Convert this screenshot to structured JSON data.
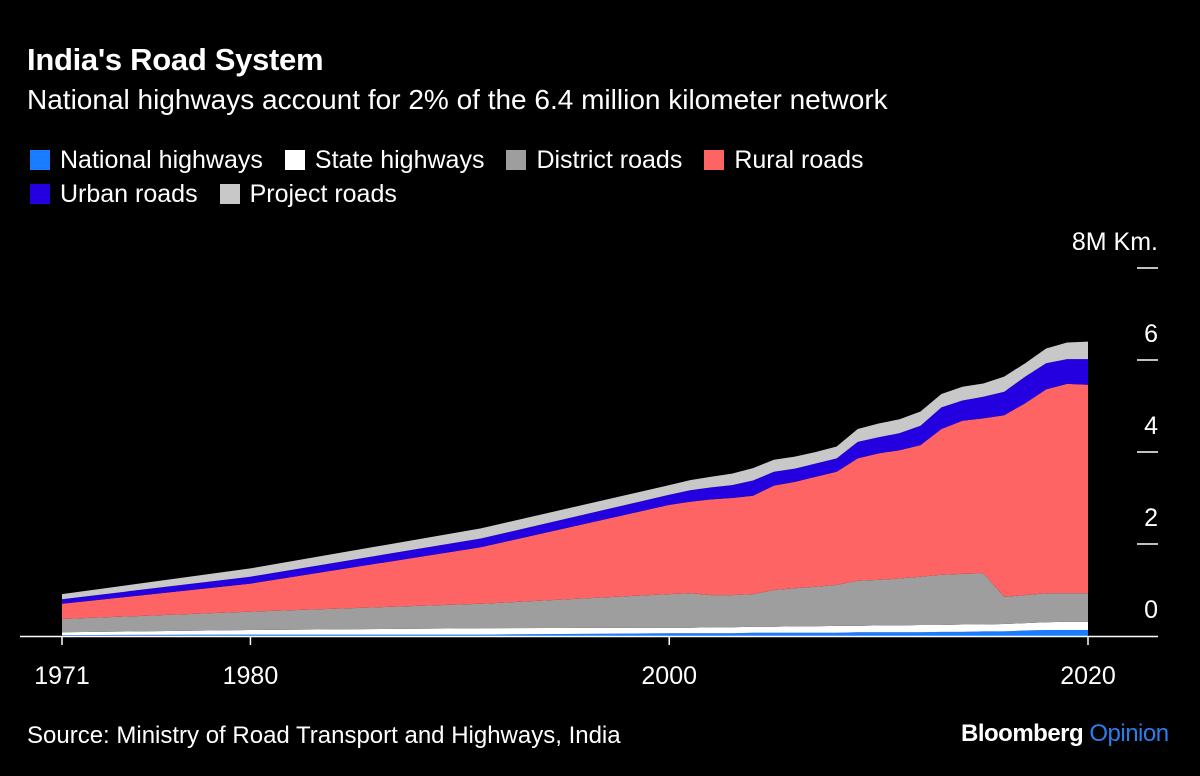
{
  "header": {
    "title": "India's Road System",
    "subtitle": "National highways account for 2% of the 6.4 million kilometer network"
  },
  "footer": {
    "source": "Source: Ministry of Road Transport and Highways, India",
    "logo_brand": "Bloomberg",
    "logo_product": "Opinion"
  },
  "chart_data": {
    "type": "area",
    "stacked": true,
    "title": "India's Road System",
    "subtitle": "National highways account for 2% of the 6.4 million kilometer network",
    "ylabel": "8M Km.",
    "unit": "million km",
    "ylim": [
      0,
      8
    ],
    "xlim": [
      1971,
      2020
    ],
    "yticks": [
      0,
      2,
      4,
      6,
      8
    ],
    "ytick_labels": [
      "0",
      "2",
      "4",
      "6",
      "8M Km."
    ],
    "xticks": [
      1971,
      1980,
      2000,
      2020
    ],
    "xtick_labels": [
      "1971",
      "1980",
      "2000",
      "2020"
    ],
    "legend_placement": "top-left",
    "grid": false,
    "x": [
      1971,
      1980,
      1991,
      2000,
      2001,
      2002,
      2003,
      2004,
      2005,
      2006,
      2007,
      2008,
      2009,
      2010,
      2011,
      2012,
      2013,
      2014,
      2015,
      2016,
      2017,
      2018,
      2019,
      2020
    ],
    "series": [
      {
        "name": "National highways",
        "color": "#1a7cff",
        "values": [
          0.02,
          0.03,
          0.03,
          0.06,
          0.06,
          0.06,
          0.06,
          0.07,
          0.07,
          0.07,
          0.07,
          0.07,
          0.08,
          0.08,
          0.08,
          0.08,
          0.09,
          0.09,
          0.1,
          0.1,
          0.12,
          0.13,
          0.13,
          0.13
        ]
      },
      {
        "name": "State highways",
        "color": "#ffffff",
        "values": [
          0.06,
          0.1,
          0.14,
          0.12,
          0.12,
          0.13,
          0.13,
          0.13,
          0.13,
          0.14,
          0.14,
          0.15,
          0.14,
          0.15,
          0.15,
          0.16,
          0.15,
          0.16,
          0.15,
          0.16,
          0.16,
          0.17,
          0.18,
          0.18
        ]
      },
      {
        "name": "District roads",
        "color": "#9e9e9e",
        "values": [
          0.29,
          0.4,
          0.53,
          0.73,
          0.75,
          0.7,
          0.7,
          0.71,
          0.8,
          0.83,
          0.86,
          0.89,
          0.98,
          0.99,
          1.02,
          1.05,
          1.09,
          1.1,
          1.11,
          0.59,
          0.61,
          0.63,
          0.62,
          0.62
        ]
      },
      {
        "name": "Rural roads",
        "color": "#ff6464",
        "values": [
          0.33,
          0.61,
          1.23,
          1.94,
          1.99,
          2.08,
          2.11,
          2.14,
          2.27,
          2.31,
          2.39,
          2.46,
          2.66,
          2.75,
          2.79,
          2.86,
          3.17,
          3.33,
          3.37,
          3.95,
          4.17,
          4.43,
          4.55,
          4.53
        ]
      },
      {
        "name": "Urban roads",
        "color": "#2400e0",
        "values": [
          0.1,
          0.15,
          0.19,
          0.22,
          0.25,
          0.26,
          0.28,
          0.33,
          0.3,
          0.29,
          0.29,
          0.29,
          0.36,
          0.35,
          0.37,
          0.42,
          0.47,
          0.44,
          0.47,
          0.51,
          0.58,
          0.57,
          0.54,
          0.56
        ]
      },
      {
        "name": "Project roads",
        "color": "#c8c8c8",
        "values": [
          0.11,
          0.18,
          0.22,
          0.21,
          0.22,
          0.23,
          0.25,
          0.27,
          0.26,
          0.26,
          0.25,
          0.26,
          0.28,
          0.3,
          0.3,
          0.31,
          0.29,
          0.3,
          0.29,
          0.33,
          0.29,
          0.32,
          0.36,
          0.38
        ]
      }
    ]
  }
}
